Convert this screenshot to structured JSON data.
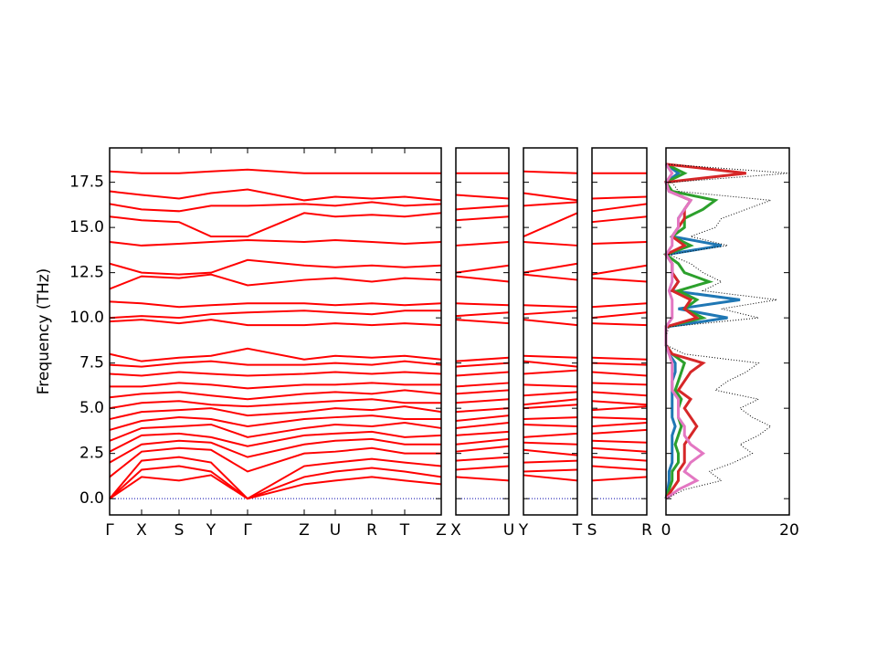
{
  "chart_data": {
    "type": "band-structure",
    "ylabel": "Frequency (THz)",
    "ylim": [
      -0.9,
      19.4
    ],
    "yticks": [
      {
        "value": 0,
        "label": "0.0"
      },
      2.5,
      {
        "value": 5,
        "label": "5.0"
      },
      7.5,
      {
        "value": 10,
        "label": "10.0"
      },
      12.5,
      {
        "value": 15,
        "label": "15.0"
      },
      17.5
    ],
    "band_color": "#ff0000",
    "zero_line_color": "#0000aa",
    "panels": [
      {
        "labels": [
          "Γ",
          "X",
          "S",
          "Y",
          "Γ",
          "Z",
          "U",
          "R",
          "T",
          "Z"
        ],
        "distances": [
          0,
          0.35,
          0.76,
          1.11,
          1.51,
          2.13,
          2.47,
          2.87,
          3.23,
          3.63
        ],
        "bands": [
          [
            0,
            1.2,
            1.0,
            1.3,
            0,
            0.8,
            1.0,
            1.2,
            1.0,
            0.8
          ],
          [
            0,
            1.6,
            1.8,
            1.5,
            0,
            1.2,
            1.5,
            1.7,
            1.5,
            1.2
          ],
          [
            0,
            2.1,
            2.3,
            2.0,
            0,
            1.8,
            2.0,
            2.2,
            2.0,
            1.8
          ],
          [
            1.2,
            2.6,
            2.8,
            2.7,
            1.5,
            2.5,
            2.6,
            2.8,
            2.5,
            2.5
          ],
          [
            2.0,
            3.0,
            3.2,
            3.1,
            2.3,
            3.0,
            3.2,
            3.3,
            3.0,
            3.0
          ],
          [
            2.6,
            3.5,
            3.6,
            3.4,
            2.9,
            3.5,
            3.6,
            3.7,
            3.4,
            3.5
          ],
          [
            3.2,
            3.9,
            4.0,
            4.1,
            3.4,
            3.9,
            4.1,
            4.0,
            4.2,
            3.9
          ],
          [
            3.8,
            4.3,
            4.5,
            4.4,
            4.0,
            4.4,
            4.5,
            4.6,
            4.4,
            4.4
          ],
          [
            4.4,
            4.8,
            4.9,
            5.0,
            4.6,
            4.8,
            5.0,
            4.9,
            5.1,
            4.8
          ],
          [
            5.0,
            5.3,
            5.4,
            5.2,
            5.1,
            5.3,
            5.4,
            5.5,
            5.3,
            5.3
          ],
          [
            5.6,
            5.8,
            5.9,
            5.7,
            5.5,
            5.8,
            5.9,
            5.8,
            6.0,
            5.8
          ],
          [
            6.2,
            6.2,
            6.4,
            6.3,
            6.1,
            6.3,
            6.3,
            6.4,
            6.3,
            6.3
          ],
          [
            6.9,
            6.8,
            7.0,
            6.9,
            6.8,
            6.9,
            7.0,
            6.9,
            7.0,
            6.9
          ],
          [
            7.4,
            7.3,
            7.5,
            7.6,
            7.4,
            7.4,
            7.5,
            7.4,
            7.6,
            7.4
          ],
          [
            8.0,
            7.6,
            7.8,
            7.9,
            8.3,
            7.7,
            7.9,
            7.8,
            7.9,
            7.7
          ],
          [
            9.8,
            9.9,
            9.7,
            9.9,
            9.6,
            9.6,
            9.7,
            9.6,
            9.7,
            9.6
          ],
          [
            10.0,
            10.1,
            10.0,
            10.2,
            10.3,
            10.4,
            10.3,
            10.2,
            10.4,
            10.4
          ],
          [
            10.9,
            10.8,
            10.6,
            10.7,
            10.8,
            10.8,
            10.7,
            10.8,
            10.7,
            10.8
          ],
          [
            11.6,
            12.3,
            12.2,
            12.4,
            11.8,
            12.1,
            12.2,
            12.0,
            12.2,
            12.1
          ],
          [
            13.0,
            12.5,
            12.4,
            12.5,
            13.2,
            12.9,
            12.8,
            12.9,
            12.8,
            12.9
          ],
          [
            14.2,
            14.0,
            14.1,
            14.2,
            14.3,
            14.2,
            14.3,
            14.2,
            14.1,
            14.2
          ],
          [
            15.6,
            15.4,
            15.3,
            14.5,
            14.5,
            15.8,
            15.6,
            15.7,
            15.6,
            15.8
          ],
          [
            16.3,
            16.0,
            15.9,
            16.2,
            16.2,
            16.3,
            16.2,
            16.4,
            16.2,
            16.3
          ],
          [
            17.0,
            16.8,
            16.6,
            16.9,
            17.1,
            16.5,
            16.7,
            16.6,
            16.7,
            16.5
          ],
          [
            18.1,
            18.0,
            18.0,
            18.1,
            18.2,
            18.0,
            18.0,
            18.0,
            18.0,
            18.0
          ]
        ]
      },
      {
        "labels": [
          "X",
          "U"
        ],
        "distances": [
          0,
          0.58
        ],
        "bands": [
          [
            1.2,
            1.0
          ],
          [
            1.6,
            1.8
          ],
          [
            2.1,
            2.3
          ],
          [
            2.6,
            2.9
          ],
          [
            3.0,
            3.3
          ],
          [
            3.5,
            3.7
          ],
          [
            3.9,
            4.2
          ],
          [
            4.3,
            4.6
          ],
          [
            4.8,
            5.0
          ],
          [
            5.3,
            5.5
          ],
          [
            5.8,
            6.0
          ],
          [
            6.2,
            6.4
          ],
          [
            6.8,
            7.0
          ],
          [
            7.3,
            7.5
          ],
          [
            7.6,
            7.8
          ],
          [
            9.9,
            9.7
          ],
          [
            10.1,
            10.3
          ],
          [
            10.8,
            10.7
          ],
          [
            12.3,
            12.0
          ],
          [
            12.5,
            12.9
          ],
          [
            14.0,
            14.2
          ],
          [
            15.4,
            15.6
          ],
          [
            16.0,
            16.2
          ],
          [
            16.8,
            16.6
          ],
          [
            18.0,
            18.0
          ]
        ]
      },
      {
        "labels": [
          "Y",
          "T"
        ],
        "distances": [
          0,
          0.59
        ],
        "bands": [
          [
            1.3,
            1.0
          ],
          [
            1.5,
            1.6
          ],
          [
            2.0,
            2.1
          ],
          [
            2.7,
            2.4
          ],
          [
            3.1,
            3.0
          ],
          [
            3.4,
            3.6
          ],
          [
            4.1,
            4.0
          ],
          [
            4.4,
            4.5
          ],
          [
            5.0,
            5.2
          ],
          [
            5.2,
            5.5
          ],
          [
            5.7,
            5.9
          ],
          [
            6.3,
            6.2
          ],
          [
            6.9,
            7.1
          ],
          [
            7.6,
            7.3
          ],
          [
            7.9,
            7.8
          ],
          [
            9.9,
            9.6
          ],
          [
            10.2,
            10.4
          ],
          [
            10.7,
            10.6
          ],
          [
            12.4,
            12.1
          ],
          [
            12.5,
            13.0
          ],
          [
            14.2,
            14.0
          ],
          [
            14.5,
            15.8
          ],
          [
            16.2,
            16.4
          ],
          [
            16.9,
            16.5
          ],
          [
            18.1,
            18.0
          ]
        ]
      },
      {
        "labels": [
          "S",
          "R"
        ],
        "distances": [
          0,
          0.6
        ],
        "bands": [
          [
            1.0,
            1.2
          ],
          [
            1.8,
            1.6
          ],
          [
            2.3,
            2.1
          ],
          [
            2.8,
            2.6
          ],
          [
            3.2,
            3.1
          ],
          [
            3.6,
            3.8
          ],
          [
            4.0,
            4.2
          ],
          [
            4.5,
            4.4
          ],
          [
            4.9,
            5.1
          ],
          [
            5.4,
            5.2
          ],
          [
            5.9,
            5.7
          ],
          [
            6.4,
            6.3
          ],
          [
            7.0,
            6.8
          ],
          [
            7.5,
            7.4
          ],
          [
            7.8,
            7.7
          ],
          [
            9.7,
            9.6
          ],
          [
            10.0,
            10.3
          ],
          [
            10.6,
            10.8
          ],
          [
            12.2,
            12.0
          ],
          [
            12.4,
            12.9
          ],
          [
            14.1,
            14.2
          ],
          [
            15.3,
            15.6
          ],
          [
            15.9,
            16.3
          ],
          [
            16.6,
            16.7
          ],
          [
            18.0,
            18.0
          ]
        ]
      }
    ],
    "dos": {
      "xlim": [
        0,
        20
      ],
      "xticks": [
        0,
        20
      ],
      "frequencies": [
        0,
        0.5,
        1,
        1.5,
        2,
        2.5,
        3,
        3.5,
        4,
        4.5,
        5,
        5.5,
        6,
        6.5,
        7,
        7.5,
        8,
        8.5,
        9,
        9.5,
        10,
        10.5,
        11,
        11.5,
        12,
        12.5,
        13,
        13.5,
        14,
        14.5,
        15,
        15.5,
        16,
        16.5,
        17,
        17.5,
        18,
        18.5
      ],
      "total": {
        "color": "#000000",
        "values": [
          0,
          3,
          9,
          7,
          11,
          14,
          12,
          15,
          17,
          14,
          12,
          15,
          8,
          10,
          13,
          15,
          3,
          0,
          0,
          0.5,
          15,
          9,
          18,
          6,
          9,
          6,
          4,
          0.5,
          10,
          4,
          8,
          9,
          13,
          17,
          2,
          1,
          20,
          0
        ]
      },
      "partials": [
        {
          "color": "#1f77b4",
          "values": [
            0,
            0.3,
            0.5,
            0.5,
            1,
            1,
            1,
            1,
            1.5,
            1,
            1,
            1,
            1,
            1,
            1.5,
            1.5,
            0.5,
            0,
            0,
            0,
            10,
            2,
            12,
            1,
            2,
            1,
            1,
            0,
            9,
            1,
            2,
            2,
            3,
            4,
            0.5,
            0,
            2,
            0
          ]
        },
        {
          "color": "#2ca02c",
          "values": [
            0,
            0.5,
            1,
            1,
            2,
            2,
            1.5,
            2,
            2.5,
            2,
            2,
            2.5,
            1.5,
            2,
            2.5,
            3,
            1,
            0,
            0,
            0,
            6,
            3,
            5,
            2,
            7,
            3,
            2,
            0,
            4,
            1,
            3,
            3,
            6,
            8,
            1,
            0,
            3,
            0
          ]
        },
        {
          "color": "#d62728",
          "values": [
            0,
            1,
            2,
            2,
            3,
            3,
            3,
            4,
            5,
            4,
            3,
            4,
            2,
            3,
            4,
            6,
            1,
            0,
            0,
            0,
            5,
            3,
            4,
            1,
            2,
            1,
            1,
            0,
            3,
            1,
            2,
            3,
            3,
            4,
            0.5,
            0,
            13,
            0
          ]
        },
        {
          "color": "#e377c2",
          "values": [
            0,
            2,
            5,
            3,
            4,
            6,
            4,
            3,
            3,
            2,
            2,
            2,
            1,
            1,
            1,
            1,
            0.5,
            0,
            0,
            0,
            1,
            1,
            1,
            0.5,
            1,
            1,
            1,
            0,
            1,
            1,
            2,
            2,
            3,
            4,
            0.5,
            0,
            1,
            0
          ]
        }
      ]
    }
  }
}
